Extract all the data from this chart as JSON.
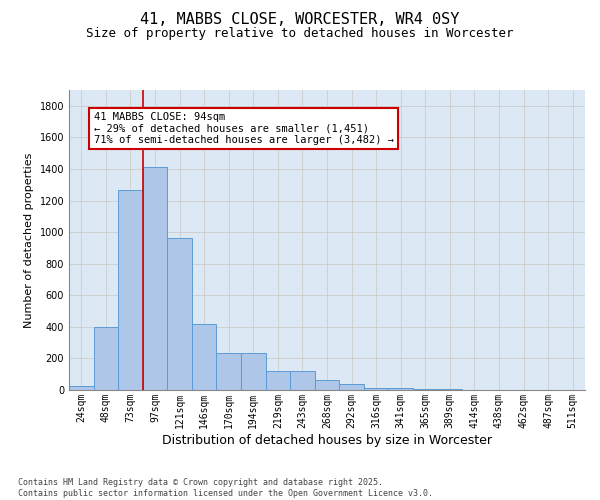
{
  "title": "41, MABBS CLOSE, WORCESTER, WR4 0SY",
  "subtitle": "Size of property relative to detached houses in Worcester",
  "xlabel": "Distribution of detached houses by size in Worcester",
  "ylabel": "Number of detached properties",
  "categories": [
    "24sqm",
    "48sqm",
    "73sqm",
    "97sqm",
    "121sqm",
    "146sqm",
    "170sqm",
    "194sqm",
    "219sqm",
    "243sqm",
    "268sqm",
    "292sqm",
    "316sqm",
    "341sqm",
    "365sqm",
    "389sqm",
    "414sqm",
    "438sqm",
    "462sqm",
    "487sqm",
    "511sqm"
  ],
  "values": [
    25,
    400,
    1265,
    1410,
    960,
    415,
    235,
    235,
    120,
    120,
    65,
    40,
    15,
    15,
    5,
    5,
    0,
    0,
    0,
    0,
    0
  ],
  "bar_color": "#aec6e8",
  "bar_edge_color": "#5b9bd5",
  "vline_color": "#cc0000",
  "annotation_text": "41 MABBS CLOSE: 94sqm\n← 29% of detached houses are smaller (1,451)\n71% of semi-detached houses are larger (3,482) →",
  "annotation_box_color": "#cc0000",
  "ylim": [
    0,
    1900
  ],
  "yticks": [
    0,
    200,
    400,
    600,
    800,
    1000,
    1200,
    1400,
    1600,
    1800
  ],
  "grid_color": "#cccccc",
  "bg_color": "#dce9f5",
  "footer": "Contains HM Land Registry data © Crown copyright and database right 2025.\nContains public sector information licensed under the Open Government Licence v3.0.",
  "title_fontsize": 11,
  "subtitle_fontsize": 9,
  "xlabel_fontsize": 9,
  "ylabel_fontsize": 8,
  "tick_fontsize": 7,
  "footer_fontsize": 6,
  "ann_fontsize": 7.5
}
